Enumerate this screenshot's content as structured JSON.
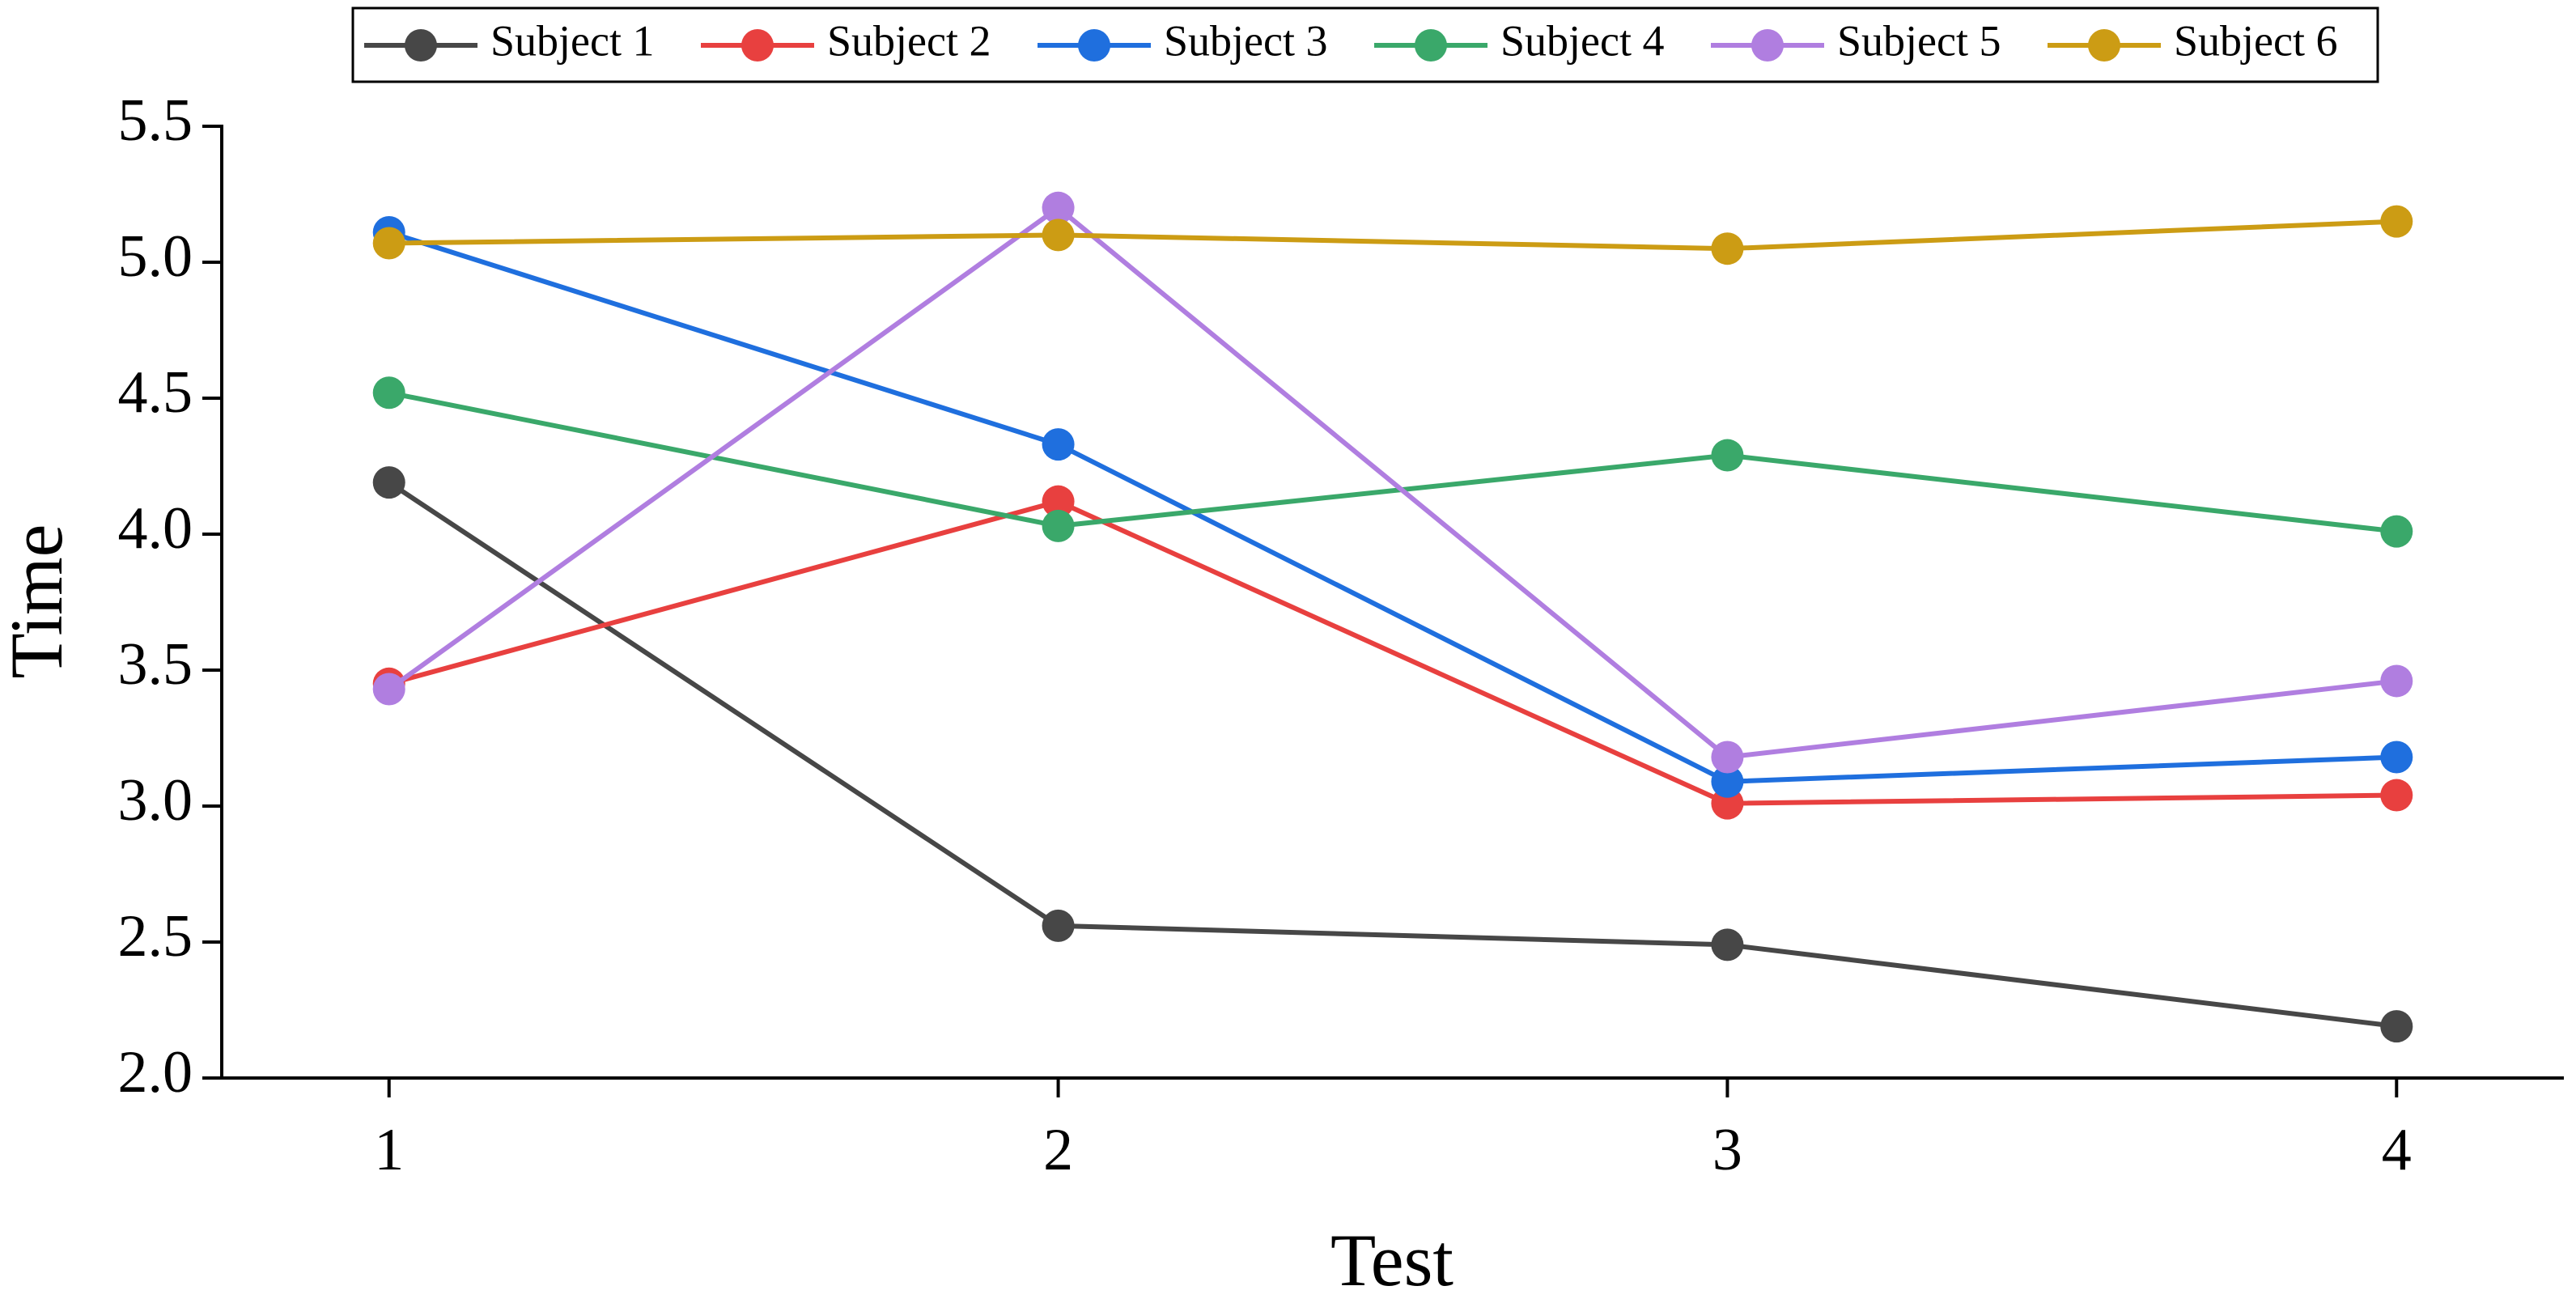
{
  "chart_data": {
    "type": "line",
    "x_label": "Test",
    "y_label": "Time",
    "x": [
      1,
      2,
      3,
      4
    ],
    "xlim": [
      0.75,
      4.25
    ],
    "xticks": [
      1,
      2,
      3,
      4
    ],
    "ylim": [
      2.0,
      5.5
    ],
    "yticks": [
      {
        "value": 2,
        "label": "2.0"
      },
      2.5,
      {
        "value": 3,
        "label": "3.0"
      },
      3.5,
      {
        "value": 4,
        "label": "4.0"
      },
      4.5,
      {
        "value": 5,
        "label": "5.0"
      },
      5.5
    ],
    "grid": false,
    "legend": "top",
    "series": [
      {
        "name": "Subject 1",
        "color": "#474747",
        "values": [
          4.19,
          2.56,
          2.49,
          2.19
        ]
      },
      {
        "name": "Subject 2",
        "color": "#e8403f",
        "values": [
          3.45,
          4.12,
          3.01,
          3.04
        ]
      },
      {
        "name": "Subject 3",
        "color": "#1f6fde",
        "values": [
          5.11,
          4.33,
          3.09,
          3.18
        ]
      },
      {
        "name": "Subject 4",
        "color": "#3aa86a",
        "values": [
          4.52,
          4.03,
          4.29,
          4.01
        ]
      },
      {
        "name": "Subject 5",
        "color": "#b07ee0",
        "values": [
          3.43,
          5.2,
          3.18,
          3.46
        ]
      },
      {
        "name": "Subject 6",
        "color": "#cc9c14",
        "values": [
          5.07,
          5.1,
          5.05,
          5.15
        ]
      }
    ]
  }
}
